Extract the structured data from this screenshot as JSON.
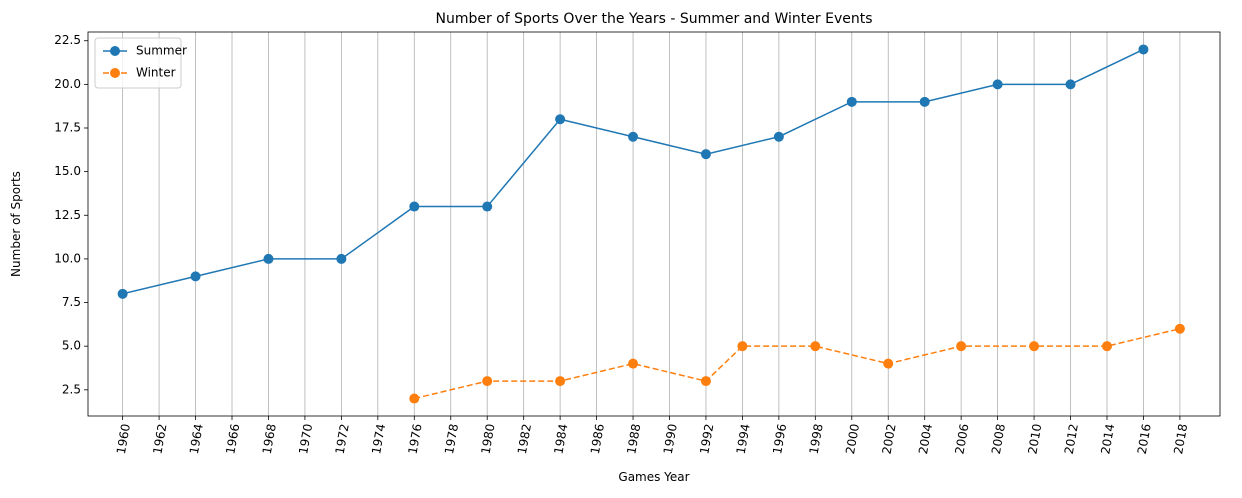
{
  "chart_data": {
    "type": "line",
    "title": "Number of Sports Over the Years - Summer and Winter Events",
    "xlabel": "Games Year",
    "ylabel": "Number of Sports",
    "xlim": [
      1958.1,
      2020.2
    ],
    "ylim": [
      1,
      23
    ],
    "xticks": [
      1960,
      1962,
      1964,
      1966,
      1968,
      1970,
      1972,
      1974,
      1976,
      1978,
      1980,
      1982,
      1984,
      1986,
      1988,
      1990,
      1992,
      1994,
      1996,
      1998,
      2000,
      2002,
      2004,
      2006,
      2008,
      2010,
      2012,
      2014,
      2016,
      2018
    ],
    "yticks": [
      2.5,
      {
        "value": 5,
        "label": "5.0"
      },
      7.5,
      {
        "value": 10,
        "label": "10.0"
      },
      12.5,
      {
        "value": 15,
        "label": "15.0"
      },
      17.5,
      {
        "value": 20,
        "label": "20.0"
      },
      22.5
    ],
    "grid": "x",
    "legend": "upper left",
    "series": [
      {
        "name": "Summer",
        "color": "#1f77b4",
        "linestyle": "solid",
        "x": [
          1960,
          1964,
          1968,
          1972,
          1976,
          1980,
          1984,
          1988,
          1992,
          1996,
          2000,
          2004,
          2008,
          2012,
          2016
        ],
        "values": [
          8,
          9,
          10,
          10,
          13,
          13,
          18,
          17,
          16,
          17,
          19,
          19,
          20,
          20,
          22
        ]
      },
      {
        "name": "Winter",
        "color": "#ff7f0e",
        "linestyle": "dashed",
        "x": [
          1976,
          1980,
          1984,
          1988,
          1992,
          1994,
          1998,
          2002,
          2006,
          2010,
          2014,
          2018
        ],
        "values": [
          2,
          3,
          3,
          4,
          3,
          5,
          5,
          4,
          5,
          5,
          5,
          6
        ]
      }
    ]
  }
}
